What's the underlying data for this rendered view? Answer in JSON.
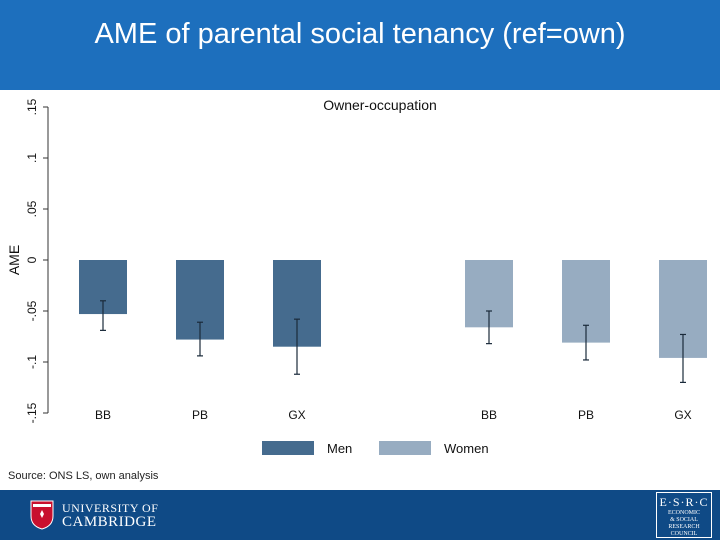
{
  "header": {
    "title": "AME of parental social tenancy (ref=own)"
  },
  "source_note": "Source: ONS LS, own analysis",
  "footer": {
    "cambridge_logo_text": [
      "UNIVERSITY OF",
      "CAMBRIDGE"
    ],
    "esrc_logo_text": [
      "E·S·R·C",
      "ECONOMIC",
      "& SOCIAL",
      "RESEARCH",
      "COUNCIL"
    ]
  },
  "colors": {
    "header_bg": "#1d6fbd",
    "footer_bg": "#0f4a86",
    "men": "#456b8e",
    "women": "#97acc1",
    "error_bar": "#1a2a3a"
  },
  "chart_data": {
    "type": "bar",
    "title": "Owner-occupation",
    "ylabel": "AME",
    "ylim": [
      -0.15,
      0.15
    ],
    "yticks": [
      -0.15,
      -0.1,
      -0.05,
      0,
      0.05,
      0.1,
      0.15
    ],
    "ytick_labels": [
      "-.15",
      "-.1",
      "-.05",
      "0",
      ".05",
      ".1",
      ".15"
    ],
    "legend_position": "bottom",
    "series": [
      {
        "name": "Men",
        "color": "#456b8e",
        "categories": [
          "BB",
          "PB",
          "GX"
        ],
        "values": [
          -0.053,
          -0.078,
          -0.085
        ],
        "ci_low": [
          -0.069,
          -0.094,
          -0.112
        ],
        "ci_high": [
          -0.04,
          -0.061,
          -0.058
        ]
      },
      {
        "name": "Women",
        "color": "#97acc1",
        "categories": [
          "BB",
          "PB",
          "GX"
        ],
        "values": [
          -0.066,
          -0.081,
          -0.096
        ],
        "ci_low": [
          -0.082,
          -0.098,
          -0.12
        ],
        "ci_high": [
          -0.05,
          -0.064,
          -0.073
        ]
      }
    ]
  }
}
